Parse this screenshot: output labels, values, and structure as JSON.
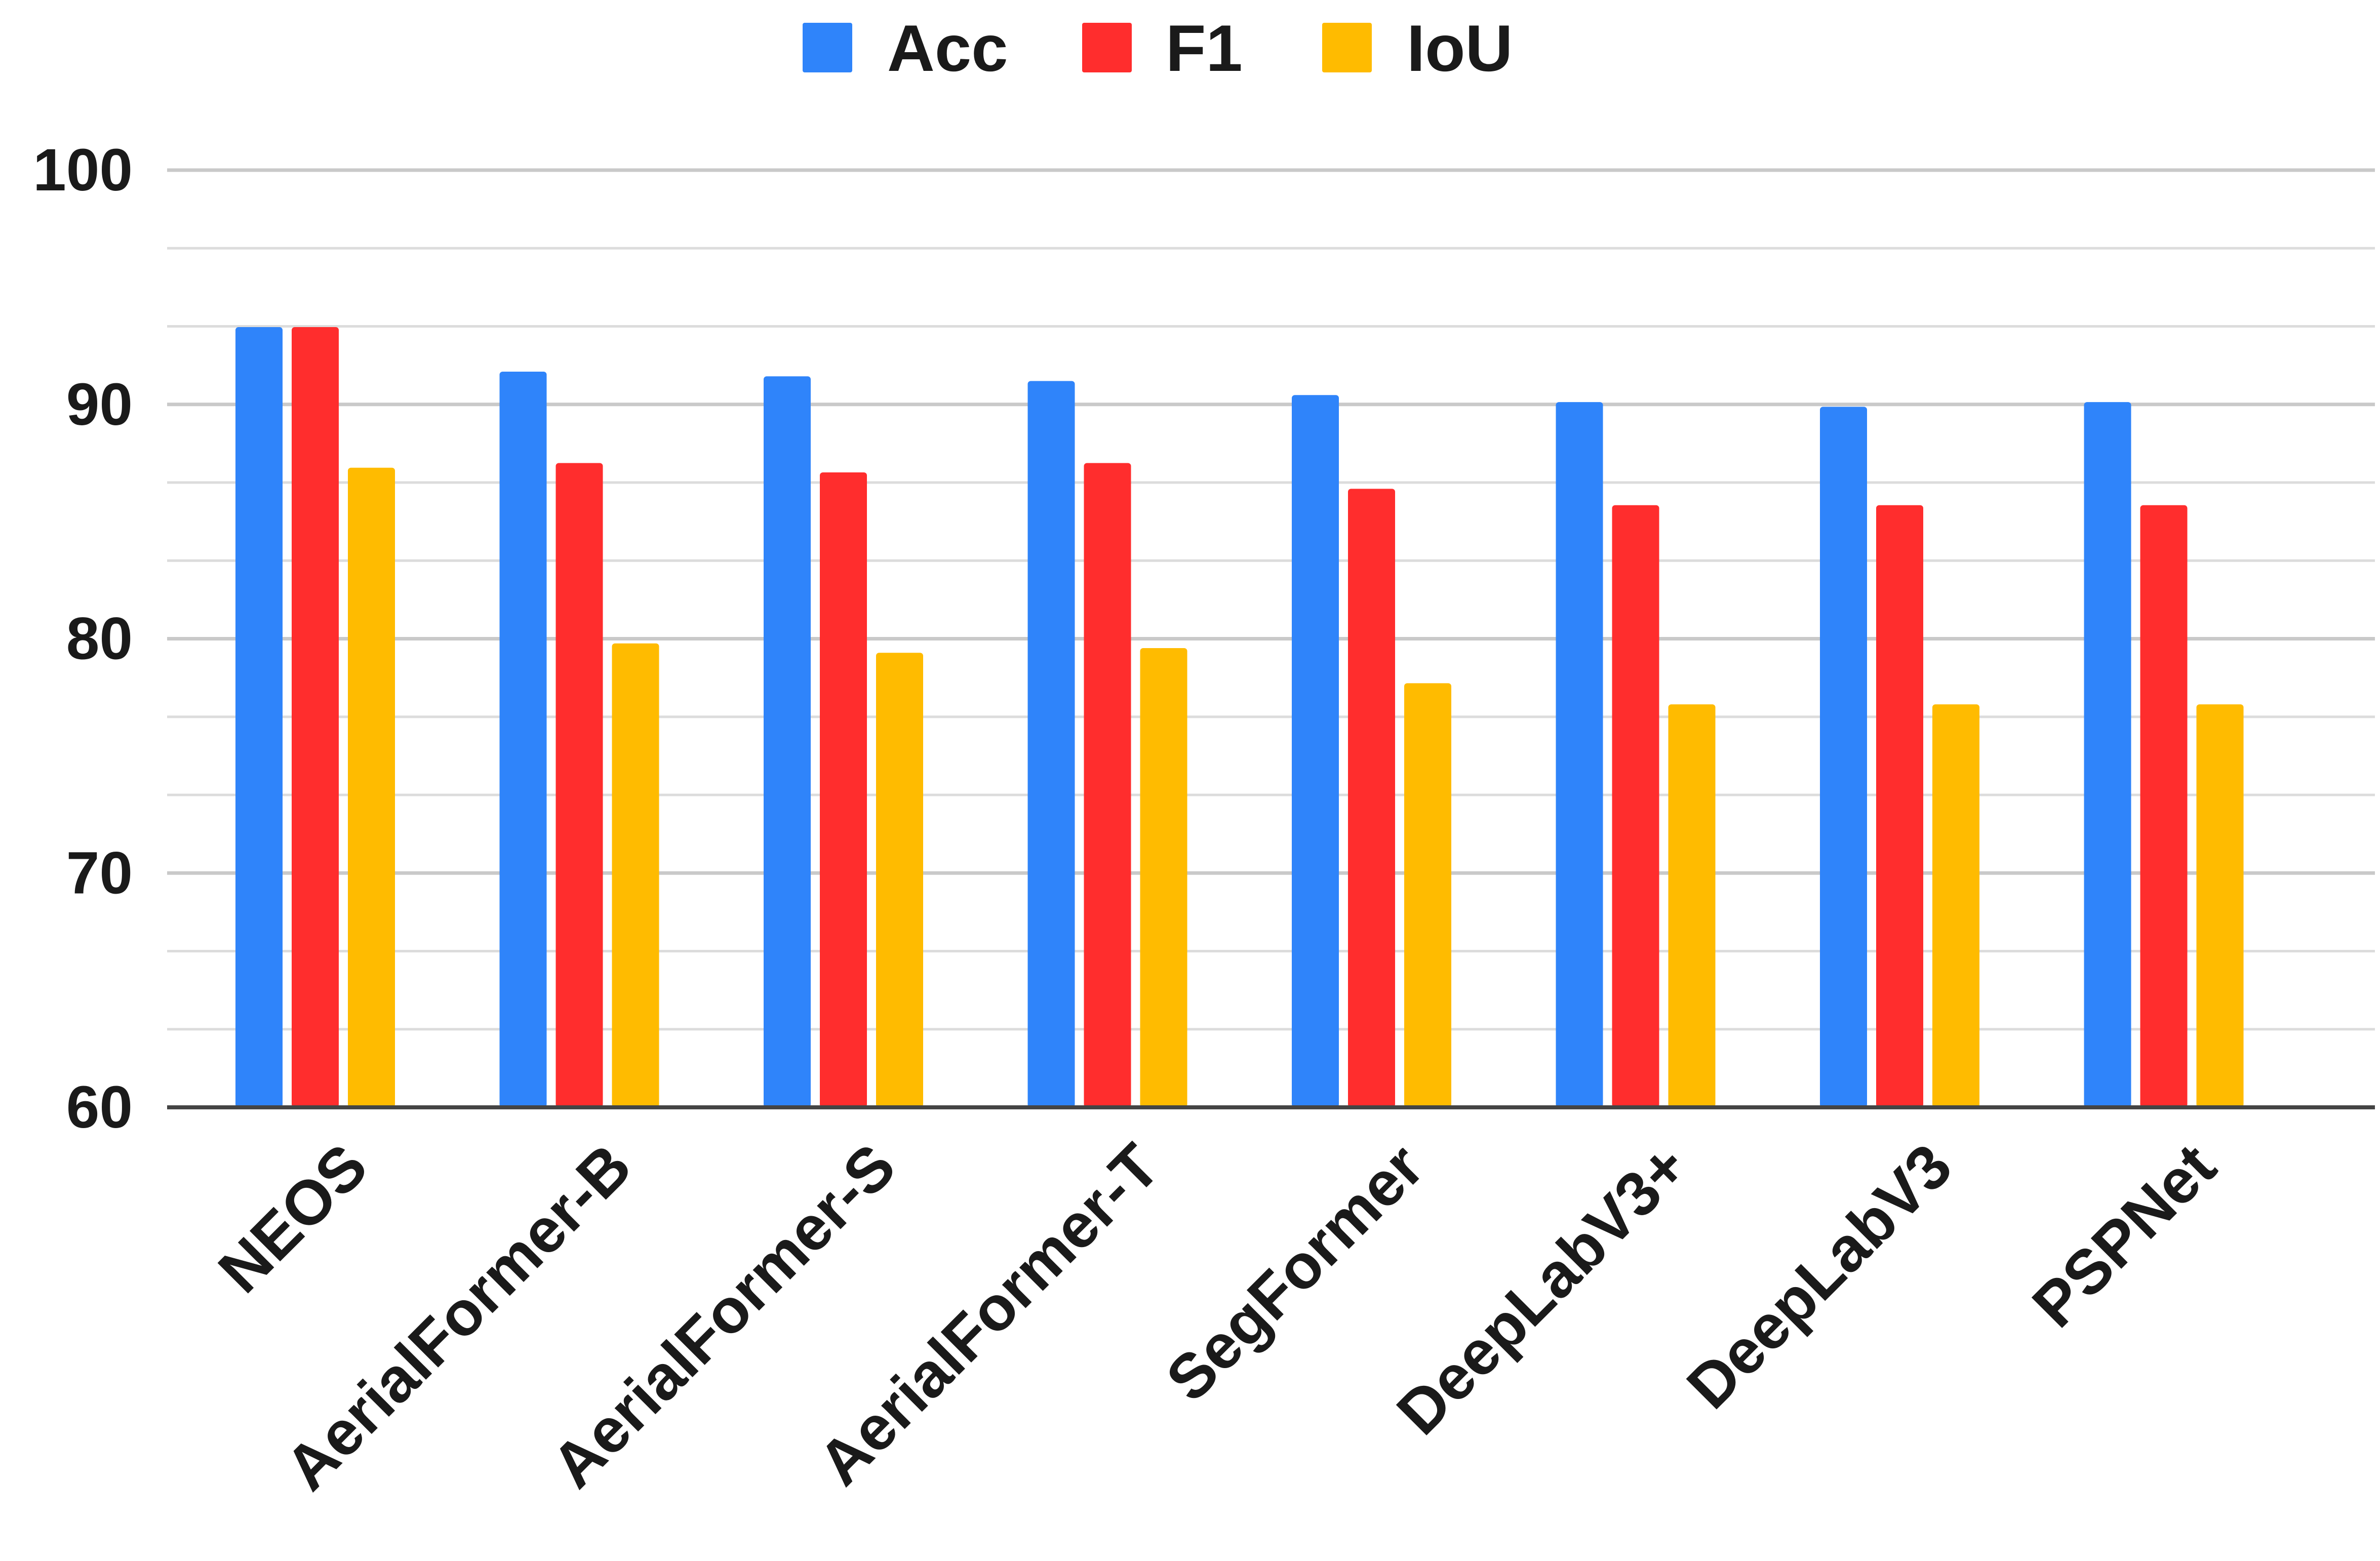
{
  "chart_data": {
    "type": "bar",
    "title": "",
    "xlabel": "",
    "ylabel": "",
    "ylim": [
      60,
      100
    ],
    "y_ticks": [
      60,
      70,
      80,
      90,
      100
    ],
    "y_tick_labels": [
      "60",
      "70",
      "80",
      "90",
      "100"
    ],
    "minor_gridline_step": 3.3333,
    "grid": true,
    "legend_position": "top-center",
    "categories": [
      "NEOS",
      "AerialFormer-B",
      "AerialFormer-S",
      "AerialFormer-T",
      "SegFormer",
      "DeepLabV3+",
      "DeepLabV3",
      "PSPNet"
    ],
    "series": [
      {
        "name": "Acc",
        "color": "#2f84fa",
        "values": [
          93.3,
          91.4,
          91.2,
          91.0,
          90.4,
          90.1,
          89.9,
          90.1
        ]
      },
      {
        "name": "F1",
        "color": "#ff2d2d",
        "values": [
          93.3,
          87.5,
          87.1,
          87.5,
          86.4,
          85.7,
          85.7,
          85.7
        ]
      },
      {
        "name": "IoU",
        "color": "#ffbb00",
        "values": [
          87.3,
          79.8,
          79.4,
          79.6,
          78.1,
          77.2,
          77.2,
          77.2
        ]
      }
    ]
  }
}
